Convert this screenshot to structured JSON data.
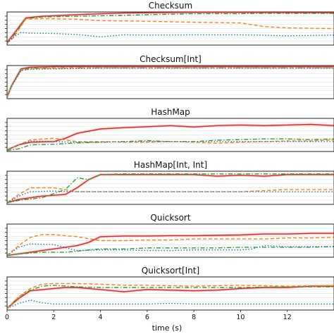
{
  "chart_data": {
    "type": "line",
    "xlabel": "time (s)",
    "xlim": [
      0,
      14
    ],
    "xticks": [
      0,
      2,
      4,
      6,
      8,
      10,
      12
    ],
    "grid": true,
    "colors": {
      "red": "#d62728",
      "green": "#2ca02c",
      "orange": "#ff7f0e",
      "blue": "#1f77b4"
    },
    "panels": [
      {
        "title": "Checksum",
        "ylim": [
          0,
          1
        ],
        "series": [
          {
            "color": "red",
            "style": "solid",
            "x": [
              0,
              0.3,
              0.8,
              1.5,
              3,
              5,
              8,
              10,
              14
            ],
            "y": [
              0.08,
              0.35,
              0.82,
              0.87,
              0.92,
              0.97,
              0.99,
              0.99,
              0.98
            ]
          },
          {
            "color": "green",
            "style": "dashdot",
            "x": [
              0,
              0.3,
              0.8,
              1.5,
              3,
              5,
              8,
              10,
              11,
              14
            ],
            "y": [
              0.06,
              0.3,
              0.8,
              0.85,
              0.87,
              0.9,
              0.95,
              0.95,
              0.96,
              0.96
            ]
          },
          {
            "color": "orange",
            "style": "dashed",
            "x": [
              0,
              0.3,
              0.8,
              1.5,
              3,
              4,
              6,
              8,
              10,
              11,
              12,
              14
            ],
            "y": [
              0.05,
              0.25,
              0.78,
              0.8,
              0.78,
              0.74,
              0.72,
              0.69,
              0.67,
              0.56,
              0.52,
              0.5
            ]
          },
          {
            "color": "blue",
            "style": "dotted",
            "x": [
              0,
              0.3,
              0.6,
              1,
              2,
              3,
              4,
              5,
              6,
              8,
              10,
              12,
              14
            ],
            "y": [
              0.05,
              0.25,
              0.38,
              0.36,
              0.35,
              0.32,
              0.25,
              0.31,
              0.3,
              0.31,
              0.31,
              0.28,
              0.3
            ]
          }
        ]
      },
      {
        "title": "Checksum[Int]",
        "ylim": [
          0,
          1
        ],
        "series": [
          {
            "color": "red",
            "style": "solid",
            "x": [
              0,
              0.2,
              0.6,
              1,
              2,
              4,
              8,
              14
            ],
            "y": [
              0.05,
              0.4,
              0.9,
              0.95,
              0.97,
              0.97,
              0.97,
              0.97
            ]
          },
          {
            "color": "green",
            "style": "dashdot",
            "x": [
              0,
              0.2,
              0.6,
              1,
              2,
              4,
              8,
              14
            ],
            "y": [
              0.05,
              0.4,
              0.88,
              0.92,
              0.93,
              0.93,
              0.93,
              0.93
            ]
          },
          {
            "color": "orange",
            "style": "dashed",
            "x": [
              0,
              0.2,
              0.6,
              1,
              2,
              4,
              8,
              14
            ],
            "y": [
              0.05,
              0.38,
              0.85,
              0.9,
              0.92,
              0.93,
              0.93,
              0.93
            ]
          },
          {
            "color": "blue",
            "style": "dotted",
            "x": [
              0,
              0.2,
              0.6,
              1,
              2,
              4,
              8,
              14
            ],
            "y": [
              0.05,
              0.38,
              0.85,
              0.89,
              0.9,
              0.92,
              0.92,
              0.92
            ]
          }
        ]
      },
      {
        "title": "HashMap",
        "ylim": [
          0,
          1
        ],
        "series": [
          {
            "color": "red",
            "style": "solid",
            "x": [
              0,
              0.5,
              1,
              2,
              2.5,
              3,
              4,
              5,
              6,
              7,
              8,
              9,
              10,
              11,
              12,
              13,
              14
            ],
            "y": [
              0.05,
              0.2,
              0.28,
              0.3,
              0.4,
              0.55,
              0.68,
              0.72,
              0.75,
              0.78,
              0.74,
              0.78,
              0.8,
              0.78,
              0.8,
              0.82,
              0.78
            ]
          },
          {
            "color": "green",
            "style": "dashdot",
            "x": [
              0,
              0.5,
              1,
              2,
              3,
              4,
              5,
              6,
              7,
              8,
              9,
              10,
              11,
              12,
              13,
              14
            ],
            "y": [
              0.03,
              0.08,
              0.2,
              0.22,
              0.26,
              0.28,
              0.3,
              0.33,
              0.3,
              0.3,
              0.34,
              0.36,
              0.38,
              0.38,
              0.36,
              0.38
            ]
          },
          {
            "color": "orange",
            "style": "dashed",
            "x": [
              0,
              0.5,
              1,
              2,
              3,
              4,
              5,
              6,
              7,
              8,
              9,
              10,
              11,
              12,
              13,
              14
            ],
            "y": [
              0.05,
              0.2,
              0.35,
              0.4,
              0.3,
              0.3,
              0.28,
              0.28,
              0.3,
              0.28,
              0.25,
              0.28,
              0.3,
              0.32,
              0.32,
              0.35
            ]
          },
          {
            "color": "blue",
            "style": "dotted",
            "x": [
              0,
              0.5,
              1,
              2,
              3,
              4,
              5,
              6,
              8,
              10,
              14
            ],
            "y": [
              0.05,
              0.2,
              0.32,
              0.3,
              0.28,
              0.28,
              0.3,
              0.3,
              0.3,
              0.3,
              0.3
            ]
          }
        ]
      },
      {
        "title": "HashMap[Int, Int]",
        "ylim": [
          0,
          1
        ],
        "series": [
          {
            "color": "red",
            "style": "solid",
            "x": [
              0,
              0.5,
              1.5,
              2.5,
              3,
              3.5,
              4,
              5,
              6,
              7,
              8,
              9,
              10,
              11,
              12,
              13,
              14
            ],
            "y": [
              0.05,
              0.15,
              0.25,
              0.3,
              0.5,
              0.75,
              0.9,
              0.9,
              0.9,
              0.9,
              0.9,
              0.85,
              0.88,
              0.85,
              0.9,
              0.9,
              0.9
            ]
          },
          {
            "color": "green",
            "style": "dashdot",
            "x": [
              0,
              0.5,
              1.5,
              2.5,
              3,
              3.5,
              4,
              5,
              8,
              10,
              14
            ],
            "y": [
              0.05,
              0.12,
              0.2,
              0.45,
              0.8,
              0.75,
              0.9,
              0.92,
              0.92,
              0.92,
              0.92
            ]
          },
          {
            "color": "orange",
            "style": "dashed",
            "x": [
              0,
              0.5,
              1,
              2,
              3,
              4,
              6,
              8,
              10,
              12,
              14
            ],
            "y": [
              0.05,
              0.3,
              0.5,
              0.5,
              0.38,
              0.38,
              0.38,
              0.38,
              0.38,
              0.45,
              0.45
            ]
          },
          {
            "color": "blue",
            "style": "dotted",
            "x": [
              0,
              0.5,
              1,
              2,
              3,
              4,
              6,
              8,
              10,
              12,
              14
            ],
            "y": [
              0.05,
              0.25,
              0.38,
              0.4,
              0.38,
              0.38,
              0.38,
              0.38,
              0.38,
              0.38,
              0.38
            ]
          }
        ]
      },
      {
        "title": "Quicksort",
        "ylim": [
          0,
          1
        ],
        "series": [
          {
            "color": "red",
            "style": "solid",
            "x": [
              0,
              0.5,
              1.5,
              2.5,
              3,
              3.5,
              4,
              5,
              6,
              7,
              8,
              9,
              10,
              11,
              12,
              13,
              14
            ],
            "y": [
              0.05,
              0.1,
              0.2,
              0.3,
              0.35,
              0.45,
              0.62,
              0.64,
              0.64,
              0.65,
              0.65,
              0.66,
              0.67,
              0.7,
              0.7,
              0.72,
              0.72
            ]
          },
          {
            "color": "green",
            "style": "dashdot",
            "x": [
              0,
              0.5,
              1.5,
              2.5,
              3,
              3.5,
              4,
              5,
              6,
              7,
              8,
              9,
              10,
              11,
              12,
              13,
              14
            ],
            "y": [
              0.05,
              0.1,
              0.15,
              0.15,
              0.18,
              0.22,
              0.25,
              0.25,
              0.28,
              0.28,
              0.28,
              0.28,
              0.3,
              0.3,
              0.3,
              0.3,
              0.32
            ]
          },
          {
            "color": "orange",
            "style": "dashed",
            "x": [
              0,
              0.5,
              1,
              1.5,
              2,
              3,
              4,
              5,
              6,
              7,
              8,
              9,
              10,
              11,
              12,
              13,
              14
            ],
            "y": [
              0.05,
              0.35,
              0.6,
              0.68,
              0.68,
              0.62,
              0.5,
              0.5,
              0.52,
              0.52,
              0.55,
              0.55,
              0.55,
              0.55,
              0.58,
              0.58,
              0.6
            ]
          },
          {
            "color": "blue",
            "style": "dotted",
            "x": [
              0,
              0.5,
              1,
              2,
              3,
              4,
              5,
              6,
              7,
              8,
              9,
              10,
              10.5,
              11,
              12,
              13,
              14
            ],
            "y": [
              0.05,
              0.3,
              0.4,
              0.38,
              0.2,
              0.22,
              0.22,
              0.2,
              0.2,
              0.22,
              0.22,
              0.22,
              0.25,
              0.35,
              0.32,
              0.32,
              0.32
            ]
          }
        ]
      },
      {
        "title": "Quicksort[Int]",
        "ylim": [
          0,
          1
        ],
        "series": [
          {
            "color": "red",
            "style": "solid",
            "x": [
              0,
              0.5,
              1,
              2,
              2.5,
              3,
              4,
              5,
              6,
              7,
              8,
              9,
              10,
              11,
              12,
              13,
              14
            ],
            "y": [
              0.05,
              0.35,
              0.58,
              0.65,
              0.68,
              0.68,
              0.62,
              0.55,
              0.62,
              0.6,
              0.58,
              0.6,
              0.65,
              0.68,
              0.68,
              0.72,
              0.72
            ]
          },
          {
            "color": "green",
            "style": "dashdot",
            "x": [
              0,
              0.5,
              1,
              1.5,
              2,
              3,
              4,
              5,
              6,
              8,
              10,
              12,
              14
            ],
            "y": [
              0.05,
              0.4,
              0.6,
              0.72,
              0.75,
              0.7,
              0.68,
              0.68,
              0.68,
              0.68,
              0.68,
              0.7,
              0.7
            ]
          },
          {
            "color": "orange",
            "style": "dashed",
            "x": [
              0,
              0.5,
              1,
              1.5,
              2,
              3,
              4,
              5,
              6,
              8,
              10,
              12,
              14
            ],
            "y": [
              0.05,
              0.4,
              0.65,
              0.78,
              0.8,
              0.8,
              0.78,
              0.75,
              0.75,
              0.72,
              0.75,
              0.72,
              0.74
            ]
          },
          {
            "color": "blue",
            "style": "dotted",
            "x": [
              0,
              0.5,
              1,
              1.5,
              2,
              3,
              4,
              5,
              6,
              7,
              8,
              9,
              10,
              11,
              12,
              13,
              14
            ],
            "y": [
              0.05,
              0.2,
              0.3,
              0.22,
              0.18,
              0.18,
              0.18,
              0.18,
              0.18,
              0.2,
              0.18,
              0.18,
              0.18,
              0.18,
              0.18,
              0.18,
              0.18
            ]
          }
        ]
      }
    ]
  }
}
